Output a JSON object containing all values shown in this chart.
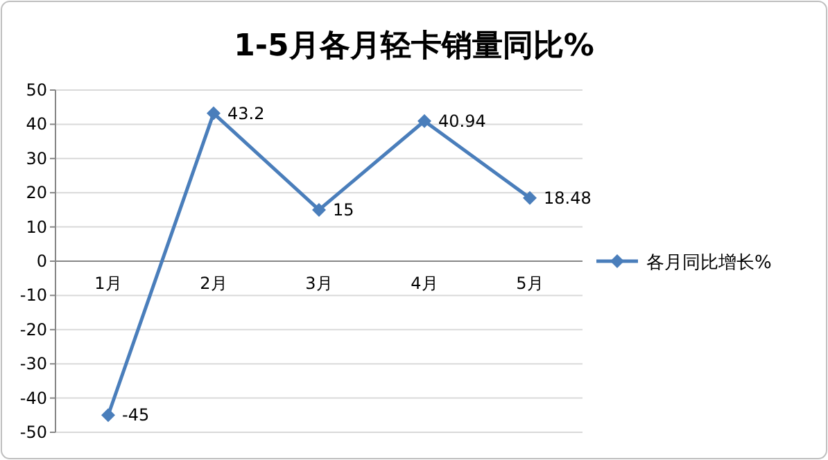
{
  "chart_data": {
    "type": "line",
    "title": "1-5月各月轻卡销量同比%",
    "categories": [
      "1月",
      "2月",
      "3月",
      "4月",
      "5月"
    ],
    "series": [
      {
        "name": "各月同比增长%",
        "color": "#4a7ebb",
        "values": [
          -45,
          43.2,
          15,
          40.94,
          18.48
        ]
      }
    ],
    "ylim": [
      -50,
      50
    ],
    "yticks": [
      -50,
      -40,
      -30,
      -20,
      -10,
      0,
      10,
      20,
      30,
      40,
      50
    ],
    "grid": "y",
    "legend": "right",
    "marker": "diamond",
    "data_labels": true
  }
}
